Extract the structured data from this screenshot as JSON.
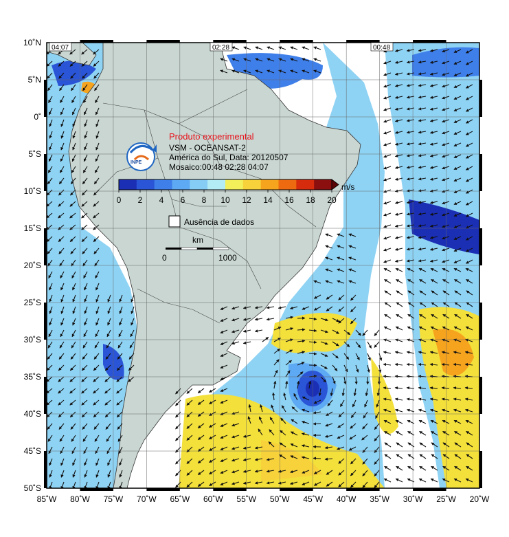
{
  "map": {
    "legend": {
      "experimental_label": "Produto experimental",
      "product_line": "VSM - OCEANSAT-2",
      "region_line": "América do Sul, Data: 20120507",
      "mosaic_line": "Mosaico:00:48 02:28 04:07",
      "logo_text": "INPE",
      "unit": "m/s",
      "colorbar_ticks": [
        "0",
        "2",
        "4",
        "6",
        "8",
        "10",
        "12",
        "14",
        "16",
        "18",
        "20"
      ],
      "colorbar_colors": [
        "#1b2fb5",
        "#2a55d6",
        "#3f7fea",
        "#5ea9f3",
        "#86cdf6",
        "#b3ecf4",
        "#f2ef5a",
        "#f7d23a",
        "#f6a41e",
        "#ee6a10",
        "#d62b0c",
        "#8c0f0f"
      ],
      "no_data_label": "Ausência de dados",
      "scale_title": "km",
      "scale_start": "0",
      "scale_end": "1000"
    },
    "pass_times": [
      "04:07",
      "02:28",
      "00:48"
    ],
    "lat_labels": [
      "10˚N",
      "5˚N",
      "0˚",
      "5˚S",
      "10˚S",
      "15˚S",
      "20˚S",
      "25˚S",
      "30˚S",
      "35˚S",
      "40˚S",
      "45˚S",
      "50˚S"
    ],
    "lon_labels": [
      "85˚W",
      "80˚W",
      "75˚W",
      "70˚W",
      "65˚W",
      "60˚W",
      "55˚W",
      "50˚W",
      "45˚W",
      "40˚W",
      "35˚W",
      "30˚W",
      "25˚W",
      "20˚W"
    ],
    "colors": {
      "land": "#c9d6d2",
      "ocean_nodata": "#ffffff",
      "low_wind": "#8fd3f4",
      "high_wind": "#f4e03a",
      "storm_core": "#1f4fd0"
    }
  }
}
